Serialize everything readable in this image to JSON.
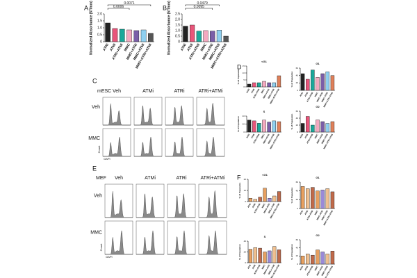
{
  "chart_data": [
    {
      "panel": "A",
      "type": "bar",
      "ylabel": "Normalized Absorbance (570nm)",
      "categories": [
        "ATRi",
        "ATMi",
        "ATRi+ATMi",
        "MMC",
        "MMC+ATRi",
        "MMC+ATMi",
        "MMC+ATRi+ATMi"
      ],
      "values": [
        1.35,
        0.95,
        0.9,
        0.85,
        0.8,
        0.85,
        0.6
      ],
      "colors": [
        "#222222",
        "#e8557a",
        "#1aa89a",
        "#f4a9c0",
        "#7b5ea8",
        "#8fd0f0",
        "#555555"
      ],
      "ylim": [
        0,
        2
      ],
      "yticks": [
        0,
        0.5,
        {
          "value": 1,
          "label": "1.0"
        },
        1.5,
        {
          "value": 2,
          "label": "2.0"
        }
      ],
      "p_values": [
        "0.0071",
        "0.0006"
      ]
    },
    {
      "panel": "B",
      "type": "bar",
      "ylabel": "Normalized Absorbance (570nm)",
      "categories": [
        "ATRi",
        "ATMi",
        "ATRi+ATMi",
        "MMC",
        "MMC+ATRi",
        "MMC+ATMi",
        "MMC+ATRi+ATMi"
      ],
      "values": [
        1.4,
        1.5,
        0.95,
        1.0,
        0.95,
        1.05,
        0.5
      ],
      "colors": [
        "#222222",
        "#e8557a",
        "#1aa89a",
        "#f4a9c0",
        "#7b5ea8",
        "#8fd0f0",
        "#555555"
      ],
      "ylim": [
        0,
        2.5
      ],
      "yticks": [
        0,
        0.5,
        {
          "value": 1,
          "label": "1.0"
        },
        1.5,
        {
          "value": 2,
          "label": "2.0"
        },
        2.5
      ],
      "p_values": [
        "0.0479",
        "0.0095"
      ]
    },
    {
      "panel": "D",
      "type": "bar",
      "title": "<G1",
      "ylabel": "% of Population",
      "categories": [
        "ATRi",
        "ATMi",
        "ATRi+ATMi",
        "MMC",
        "MMC+ATRi",
        "MMC+ATMi",
        "MMC+ATRi+ATMi"
      ],
      "values": [
        2,
        3,
        3,
        4,
        3,
        3,
        8
      ],
      "colors": [
        "#222222",
        "#e8557a",
        "#1aa89a",
        "#f4a9c0",
        "#7b5ea8",
        "#8fd0f0",
        "#e0805a"
      ],
      "ylim": [
        0,
        15
      ],
      "yticks": [
        0,
        5,
        10,
        15
      ]
    },
    {
      "type": "bar",
      "title": "G1",
      "ylabel": "% of Population",
      "categories": [
        "ATRi",
        "ATMi",
        "ATRi+ATMi",
        "MMC",
        "MMC+ATRi",
        "MMC+ATMi",
        "MMC+ATRi+ATMi"
      ],
      "values": [
        45,
        30,
        55,
        35,
        45,
        50,
        40
      ],
      "colors": [
        "#222222",
        "#e8557a",
        "#1aa89a",
        "#f4a9c0",
        "#7b5ea8",
        "#8fd0f0",
        "#e0805a"
      ],
      "ylim": [
        0,
        60
      ],
      "yticks": [
        0,
        20,
        40,
        60
      ]
    },
    {
      "type": "bar",
      "title": "S",
      "ylabel": "% of Population",
      "categories": [
        "ATRi",
        "ATMi",
        "ATRi+ATMi",
        "MMC",
        "MMC+ATRi",
        "MMC+ATMi",
        "MMC+ATRi+ATMi"
      ],
      "values": [
        30,
        28,
        22,
        30,
        25,
        28,
        26
      ],
      "colors": [
        "#222222",
        "#e8557a",
        "#1aa89a",
        "#f4a9c0",
        "#7b5ea8",
        "#8fd0f0",
        "#e0805a"
      ],
      "ylim": [
        0,
        40
      ],
      "yticks": [
        0,
        20,
        40
      ]
    },
    {
      "type": "bar",
      "title": "G2",
      "ylabel": "% of Population",
      "categories": [
        "ATRi",
        "ATMi",
        "ATRi+ATMi",
        "MMC",
        "MMC+ATRi",
        "MMC+ATMi",
        "MMC+ATRi+ATMi"
      ],
      "values": [
        25,
        45,
        20,
        35,
        30,
        25,
        30
      ],
      "colors": [
        "#222222",
        "#e8557a",
        "#1aa89a",
        "#f4a9c0",
        "#7b5ea8",
        "#8fd0f0",
        "#e0805a"
      ],
      "ylim": [
        0,
        60
      ],
      "yticks": [
        0,
        20,
        40,
        60
      ]
    },
    {
      "panel": "F",
      "type": "bar",
      "title": "<G1",
      "ylabel": "% of Population",
      "categories": [
        "ATRi",
        "ATMi",
        "ATRi+ATMi",
        "MMC",
        "MMC+ATRi",
        "MMC+ATMi",
        "MMC+ATRi+ATMi"
      ],
      "values": [
        3,
        2,
        4,
        12,
        3,
        5,
        9
      ],
      "colors": [
        "#e8a060",
        "#f0c090",
        "#c06a4a",
        "#e8a060",
        "#9a8ad8",
        "#f0c090",
        "#c06a4a"
      ],
      "ylim": [
        0,
        20
      ],
      "yticks": [
        0,
        10,
        20
      ]
    },
    {
      "type": "bar",
      "title": "G1",
      "ylabel": "% of Population",
      "categories": [
        "ATRi",
        "ATMi",
        "ATRi+ATMi",
        "MMC",
        "MMC+ATRi",
        "MMC+ATMi",
        "MMC+ATRi+ATMi"
      ],
      "values": [
        50,
        45,
        48,
        40,
        42,
        45,
        38
      ],
      "colors": [
        "#e8a060",
        "#f0c090",
        "#c06a4a",
        "#e8a060",
        "#9a8ad8",
        "#f0c090",
        "#c06a4a"
      ],
      "ylim": [
        0,
        60
      ],
      "yticks": [
        0,
        20,
        40,
        60
      ]
    },
    {
      "type": "bar",
      "title": "S",
      "ylabel": "% of Population",
      "categories": [
        "ATRi",
        "ATMi",
        "ATRi+ATMi",
        "MMC",
        "MMC+ATRi",
        "MMC+ATMi",
        "MMC+ATRi+ATMi"
      ],
      "values": [
        25,
        28,
        27,
        20,
        22,
        30,
        24
      ],
      "colors": [
        "#e8a060",
        "#f0c090",
        "#c06a4a",
        "#e8a060",
        "#9a8ad8",
        "#f0c090",
        "#c06a4a"
      ],
      "ylim": [
        0,
        40
      ],
      "yticks": [
        0,
        20,
        40
      ]
    },
    {
      "type": "bar",
      "title": "G2",
      "ylabel": "% of Population",
      "categories": [
        "ATRi",
        "ATMi",
        "ATRi+ATMi",
        "MMC",
        "MMC+ATRi",
        "MMC+ATMi",
        "MMC+ATRi+ATMi"
      ],
      "values": [
        20,
        25,
        22,
        35,
        30,
        25,
        32
      ],
      "colors": [
        "#e8a060",
        "#f0c090",
        "#c06a4a",
        "#e8a060",
        "#9a8ad8",
        "#f0c090",
        "#c06a4a"
      ],
      "ylim": [
        0,
        60
      ],
      "yticks": [
        0,
        20,
        40,
        60
      ]
    }
  ],
  "flow_panels": [
    {
      "panel": "C",
      "cell_line": "mESC",
      "columns": [
        "Veh",
        "ATMi",
        "ATRi",
        "ATRi+ATMi"
      ],
      "rows": [
        "Veh",
        "MMC"
      ],
      "ylabel": "Count",
      "xlabel": "DAPI"
    },
    {
      "panel": "E",
      "cell_line": "MEF",
      "columns": [
        "Veh",
        "ATMi",
        "ATRi",
        "ATRi+ATMi"
      ],
      "rows": [
        "Veh",
        "MMC"
      ],
      "ylabel": "Count",
      "xlabel": "DAPI"
    }
  ]
}
